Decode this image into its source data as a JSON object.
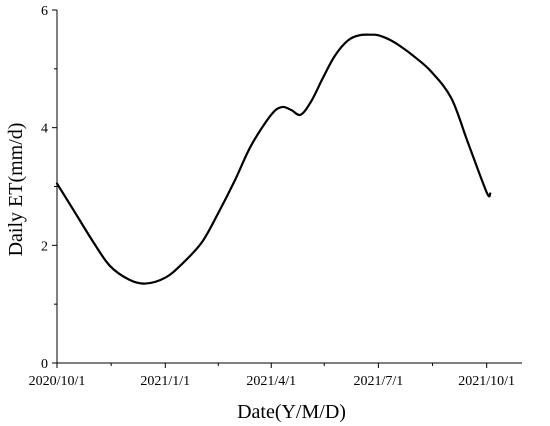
{
  "chart_data": {
    "type": "line",
    "title": "",
    "xlabel": "Date(Y/M/D)",
    "ylabel": "Daily ET(mm/d)",
    "xlim": [
      "2020-10-01",
      "2021-10-31"
    ],
    "ylim": [
      0,
      6
    ],
    "x_ticks": [
      "2020/10/1",
      "2021/1/1",
      "2021/4/1",
      "2021/7/1",
      "2021/10/1"
    ],
    "x_tick_dates": [
      "2020-10-01",
      "2021-01-01",
      "2021-04-01",
      "2021-07-01",
      "2021-10-01"
    ],
    "y_ticks": [
      0,
      2,
      4,
      6
    ],
    "grid": false,
    "legend": "none",
    "series": [
      {
        "x": [
          "2020-10-01",
          "2020-10-15",
          "2020-11-01",
          "2020-11-15",
          "2020-12-01",
          "2020-12-15",
          "2021-01-01",
          "2021-01-15",
          "2021-02-01",
          "2021-02-15",
          "2021-03-01",
          "2021-03-15",
          "2021-04-01",
          "2021-04-10",
          "2021-04-18",
          "2021-04-26",
          "2021-05-05",
          "2021-05-15",
          "2021-05-25",
          "2021-06-05",
          "2021-06-15",
          "2021-06-25",
          "2021-07-01",
          "2021-07-10",
          "2021-07-20",
          "2021-08-01",
          "2021-08-15",
          "2021-09-01",
          "2021-09-15",
          "2021-10-01",
          "2021-10-04"
        ],
        "y": [
          3.05,
          2.6,
          2.05,
          1.65,
          1.42,
          1.35,
          1.45,
          1.68,
          2.05,
          2.55,
          3.1,
          3.7,
          4.22,
          4.35,
          4.3,
          4.22,
          4.45,
          4.85,
          5.22,
          5.48,
          5.57,
          5.58,
          5.57,
          5.5,
          5.38,
          5.2,
          4.95,
          4.5,
          3.75,
          2.9,
          2.88
        ]
      }
    ]
  }
}
